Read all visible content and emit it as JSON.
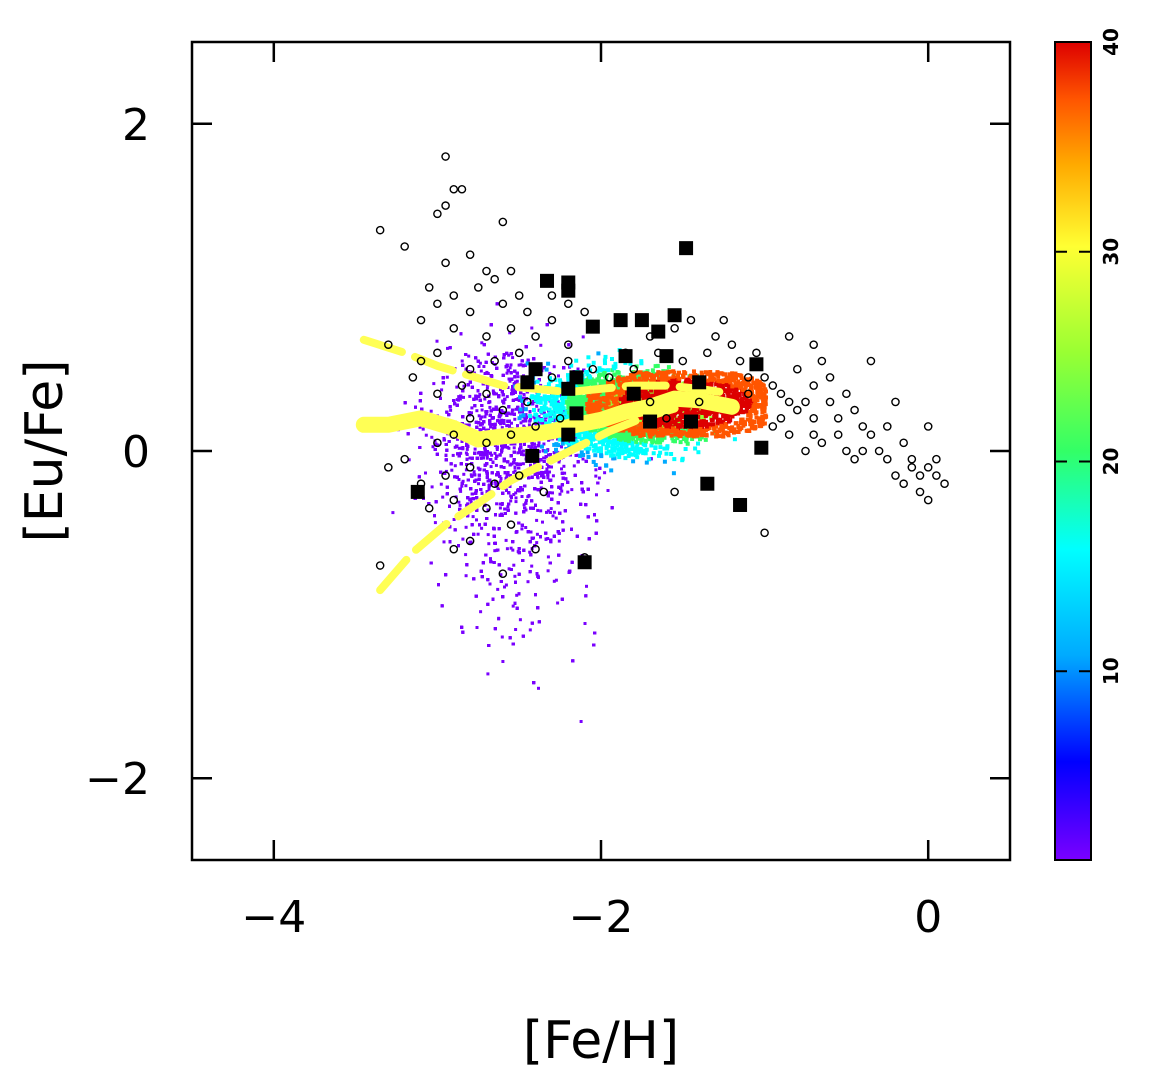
{
  "chart_data": {
    "type": "scatter",
    "title": "",
    "xlabel": "[Fe/H]",
    "ylabel": "[Eu/Fe]",
    "xlim": [
      -4.5,
      0.5
    ],
    "ylim": [
      -2.5,
      2.5
    ],
    "x_ticks": [
      -4,
      -2,
      0
    ],
    "x_tick_labels": [
      "−4",
      "−2",
      "0"
    ],
    "y_ticks": [
      -2,
      0,
      2
    ],
    "y_tick_labels": [
      "−2",
      "0",
      "2"
    ],
    "grid": false,
    "legend": "none",
    "colorbar": {
      "range": [
        1,
        40
      ],
      "ticks": [
        10,
        20,
        30,
        40
      ],
      "tick_labels": [
        "10",
        "20",
        "30",
        "40"
      ],
      "colormap": [
        "#7a00ff",
        "#0000ff",
        "#00aaff",
        "#00ffff",
        "#33ff66",
        "#99ff33",
        "#ffff33",
        "#ffaa00",
        "#ff5500",
        "#dd0000"
      ]
    },
    "density_map": {
      "color_low": "#7a00ff",
      "color_high": "#dd0000",
      "core": {
        "x_range": [
          -2.1,
          -1.0
        ],
        "y_range": [
          0.1,
          0.5
        ]
      }
    },
    "series": [
      {
        "marker": "open-circle",
        "color": "#000000",
        "points": [
          [
            -2.95,
            1.8
          ],
          [
            -2.9,
            1.6
          ],
          [
            -2.95,
            1.5
          ],
          [
            -3.0,
            1.45
          ],
          [
            -2.85,
            1.6
          ],
          [
            -2.6,
            1.4
          ],
          [
            -3.35,
            1.35
          ],
          [
            -3.2,
            1.25
          ],
          [
            -2.8,
            1.2
          ],
          [
            -2.7,
            1.1
          ],
          [
            -2.65,
            1.05
          ],
          [
            -2.55,
            1.1
          ],
          [
            -2.95,
            1.15
          ],
          [
            -3.05,
            1.0
          ],
          [
            -2.9,
            0.95
          ],
          [
            -2.75,
            1.0
          ],
          [
            -2.5,
            0.95
          ],
          [
            -2.3,
            0.95
          ],
          [
            -2.2,
            0.9
          ],
          [
            -2.45,
            0.85
          ],
          [
            -2.6,
            0.9
          ],
          [
            -2.8,
            0.85
          ],
          [
            -3.0,
            0.9
          ],
          [
            -3.1,
            0.8
          ],
          [
            -2.9,
            0.75
          ],
          [
            -2.7,
            0.7
          ],
          [
            -2.55,
            0.75
          ],
          [
            -2.4,
            0.7
          ],
          [
            -2.3,
            0.8
          ],
          [
            -2.1,
            0.85
          ],
          [
            -2.05,
            0.75
          ],
          [
            -2.2,
            0.65
          ],
          [
            -2.5,
            0.6
          ],
          [
            -2.65,
            0.55
          ],
          [
            -2.8,
            0.5
          ],
          [
            -3.0,
            0.6
          ],
          [
            -3.1,
            0.55
          ],
          [
            -3.3,
            0.65
          ],
          [
            -3.15,
            0.45
          ],
          [
            -3.0,
            0.35
          ],
          [
            -2.85,
            0.4
          ],
          [
            -2.7,
            0.35
          ],
          [
            -2.6,
            0.25
          ],
          [
            -2.45,
            0.3
          ],
          [
            -2.3,
            0.45
          ],
          [
            -2.2,
            0.55
          ],
          [
            -2.05,
            0.5
          ],
          [
            -1.95,
            0.45
          ],
          [
            -2.8,
            0.2
          ],
          [
            -2.9,
            0.1
          ],
          [
            -3.0,
            0.05
          ],
          [
            -2.7,
            0.05
          ],
          [
            -2.55,
            0.1
          ],
          [
            -2.4,
            0.15
          ],
          [
            -2.25,
            0.2
          ],
          [
            -3.2,
            -0.05
          ],
          [
            -3.3,
            -0.1
          ],
          [
            -3.1,
            -0.2
          ],
          [
            -2.95,
            -0.15
          ],
          [
            -2.8,
            -0.1
          ],
          [
            -2.65,
            -0.2
          ],
          [
            -2.5,
            -0.15
          ],
          [
            -2.35,
            -0.25
          ],
          [
            -3.05,
            -0.35
          ],
          [
            -2.9,
            -0.3
          ],
          [
            -2.7,
            -0.35
          ],
          [
            -2.55,
            -0.45
          ],
          [
            -2.8,
            -0.55
          ],
          [
            -2.9,
            -0.6
          ],
          [
            -2.4,
            -0.6
          ],
          [
            -3.35,
            -0.7
          ],
          [
            -2.6,
            -0.75
          ],
          [
            -2.1,
            -0.65
          ],
          [
            -1.85,
            0.6
          ],
          [
            -1.7,
            0.7
          ],
          [
            -1.55,
            0.75
          ],
          [
            -1.45,
            0.8
          ],
          [
            -1.3,
            0.7
          ],
          [
            -1.35,
            0.6
          ],
          [
            -1.5,
            0.55
          ],
          [
            -1.65,
            0.6
          ],
          [
            -1.8,
            0.5
          ],
          [
            -1.2,
            0.65
          ],
          [
            -1.15,
            0.55
          ],
          [
            -1.1,
            0.45
          ],
          [
            -1.05,
            0.6
          ],
          [
            -1.25,
            0.8
          ],
          [
            -1.1,
            0.35
          ],
          [
            -1.0,
            0.45
          ],
          [
            -0.95,
            0.4
          ],
          [
            -0.9,
            0.35
          ],
          [
            -0.85,
            0.3
          ],
          [
            -0.8,
            0.5
          ],
          [
            -0.85,
            0.7
          ],
          [
            -0.7,
            0.65
          ],
          [
            -0.65,
            0.55
          ],
          [
            -0.6,
            0.45
          ],
          [
            -0.7,
            0.4
          ],
          [
            -0.75,
            0.3
          ],
          [
            -0.8,
            0.25
          ],
          [
            -0.9,
            0.2
          ],
          [
            -0.95,
            0.15
          ],
          [
            -0.85,
            0.1
          ],
          [
            -0.7,
            0.2
          ],
          [
            -0.6,
            0.3
          ],
          [
            -0.55,
            0.2
          ],
          [
            -0.5,
            0.35
          ],
          [
            -0.45,
            0.25
          ],
          [
            -0.4,
            0.15
          ],
          [
            -0.55,
            0.1
          ],
          [
            -0.65,
            0.05
          ],
          [
            -0.75,
            0.0
          ],
          [
            -0.5,
            0.0
          ],
          [
            -0.45,
            -0.05
          ],
          [
            -0.35,
            0.1
          ],
          [
            -0.3,
            0.0
          ],
          [
            -0.25,
            -0.05
          ],
          [
            -0.35,
            0.55
          ],
          [
            -0.2,
            0.3
          ],
          [
            -0.25,
            0.15
          ],
          [
            -0.15,
            0.05
          ],
          [
            -0.1,
            -0.1
          ],
          [
            -0.2,
            -0.15
          ],
          [
            -0.05,
            -0.15
          ],
          [
            0.0,
            -0.1
          ],
          [
            0.05,
            -0.15
          ],
          [
            -0.15,
            -0.2
          ],
          [
            -0.05,
            -0.25
          ],
          [
            0.1,
            -0.2
          ],
          [
            0.0,
            -0.3
          ],
          [
            0.0,
            0.15
          ],
          [
            0.05,
            -0.05
          ],
          [
            -0.1,
            -0.05
          ],
          [
            -1.0,
            -0.5
          ],
          [
            -1.55,
            -0.25
          ],
          [
            -1.6,
            0.2
          ],
          [
            -1.7,
            0.3
          ],
          [
            -1.4,
            0.3
          ],
          [
            -0.7,
            0.1
          ],
          [
            -0.4,
            0.0
          ]
        ]
      },
      {
        "marker": "filled-square",
        "color": "#000000",
        "points": [
          [
            -1.48,
            1.24
          ],
          [
            -2.33,
            1.04
          ],
          [
            -2.2,
            1.03
          ],
          [
            -2.2,
            0.98
          ],
          [
            -1.88,
            0.8
          ],
          [
            -1.75,
            0.8
          ],
          [
            -1.55,
            0.83
          ],
          [
            -2.05,
            0.76
          ],
          [
            -1.65,
            0.73
          ],
          [
            -1.85,
            0.58
          ],
          [
            -1.6,
            0.58
          ],
          [
            -1.05,
            0.53
          ],
          [
            -2.4,
            0.5
          ],
          [
            -2.15,
            0.45
          ],
          [
            -2.45,
            0.42
          ],
          [
            -2.2,
            0.38
          ],
          [
            -1.4,
            0.42
          ],
          [
            -2.15,
            0.23
          ],
          [
            -1.7,
            0.18
          ],
          [
            -1.45,
            0.18
          ],
          [
            -2.2,
            0.1
          ],
          [
            -2.42,
            -0.03
          ],
          [
            -1.02,
            0.02
          ],
          [
            -1.35,
            -0.2
          ],
          [
            -1.15,
            -0.33
          ],
          [
            -3.12,
            -0.25
          ],
          [
            -2.1,
            -0.68
          ],
          [
            -1.8,
            0.35
          ]
        ]
      },
      {
        "name": "",
        "style": "thick",
        "color": "#ffff55",
        "x": [
          -3.45,
          -3.3,
          -3.1,
          -2.9,
          -2.75,
          -2.6,
          -2.45,
          -2.3,
          -2.15,
          -2.0,
          -1.85,
          -1.7,
          -1.55,
          -1.4,
          -1.25,
          -1.2
        ],
        "y": [
          0.16,
          0.16,
          0.2,
          0.14,
          0.07,
          0.09,
          0.1,
          0.12,
          0.16,
          0.19,
          0.24,
          0.27,
          0.32,
          0.31,
          0.28,
          0.27
        ]
      },
      {
        "name": "",
        "style": "dashed-upper",
        "color": "#ffff55",
        "x": [
          -3.45,
          -3.2,
          -3.0,
          -2.8,
          -2.6,
          -2.4,
          -2.2,
          -2.0,
          -1.8,
          -1.6,
          -1.4,
          -1.2
        ],
        "y": [
          0.68,
          0.6,
          0.52,
          0.46,
          0.4,
          0.38,
          0.36,
          0.38,
          0.4,
          0.4,
          0.38,
          0.35
        ]
      },
      {
        "name": "",
        "style": "dashed-lower",
        "color": "#ffff55",
        "x": [
          -3.35,
          -3.15,
          -2.95,
          -2.75,
          -2.55,
          -2.35,
          -2.15,
          -1.95,
          -1.75,
          -1.55
        ],
        "y": [
          -0.85,
          -0.62,
          -0.45,
          -0.32,
          -0.18,
          -0.08,
          0.02,
          0.12,
          0.2,
          0.26
        ]
      }
    ]
  }
}
